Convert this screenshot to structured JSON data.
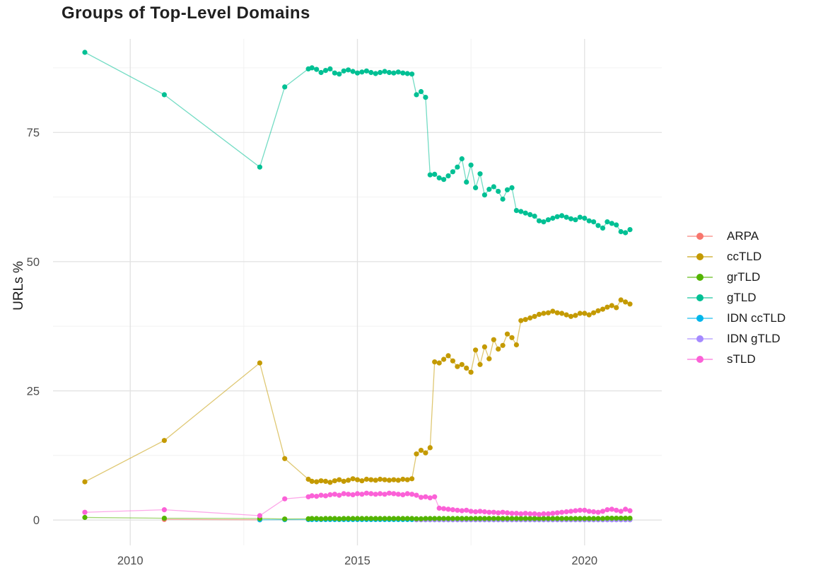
{
  "chart_data": {
    "type": "line",
    "title": "Groups of Top-Level Domains",
    "xlabel": "",
    "ylabel": "URLs %",
    "x_ticks": {
      "values": [
        2010,
        2015,
        2020
      ],
      "labels": [
        "2010",
        "2015",
        "2020"
      ]
    },
    "y_ticks": {
      "values": [
        0,
        25,
        50,
        75
      ],
      "labels": [
        "0",
        "25",
        "50",
        "75"
      ]
    },
    "x_minor": [
      2012.5,
      2017.5
    ],
    "y_minor": [
      12.5,
      37.5,
      62.5,
      87.5
    ],
    "xlim": [
      2008.3,
      2021.7
    ],
    "ylim": [
      -4.9,
      93.1
    ],
    "grid": "major+minor",
    "legend_position": "right",
    "draw_order": [
      "ARPA",
      "IDN ccTLD",
      "IDN gTLD",
      "gTLD",
      "ccTLD",
      "grTLD",
      "sTLD"
    ],
    "series": [
      {
        "name": "ARPA",
        "color": "#F8766D",
        "x": [
          2010.75,
          2012.85
        ],
        "y": [
          0.12,
          0.06
        ]
      },
      {
        "name": "ccTLD",
        "color": "#C49A00",
        "x": [
          2009,
          2010.75,
          2012.85,
          2013.4,
          2013.92,
          2014.0,
          2014.1,
          2014.2,
          2014.3,
          2014.4,
          2014.5,
          2014.6,
          2014.7,
          2014.8,
          2014.9,
          2015.0,
          2015.1,
          2015.2,
          2015.3,
          2015.4,
          2015.5,
          2015.6,
          2015.7,
          2015.8,
          2015.9,
          2016.0,
          2016.1,
          2016.2,
          2016.3,
          2016.4,
          2016.5,
          2016.6,
          2016.7,
          2016.8,
          2016.9,
          2017.0,
          2017.1,
          2017.2,
          2017.3,
          2017.4,
          2017.5,
          2017.6,
          2017.7,
          2017.8,
          2017.9,
          2018.0,
          2018.1,
          2018.2,
          2018.3,
          2018.4,
          2018.5,
          2018.6,
          2018.7,
          2018.8,
          2018.9,
          2019.0,
          2019.1,
          2019.2,
          2019.3,
          2019.4,
          2019.5,
          2019.6,
          2019.7,
          2019.8,
          2019.9,
          2020.0,
          2020.1,
          2020.2,
          2020.3,
          2020.4,
          2020.5,
          2020.6,
          2020.7,
          2020.8,
          2020.9,
          2021.0
        ],
        "y": [
          7.4,
          15.4,
          30.4,
          11.9,
          7.9,
          7.5,
          7.4,
          7.6,
          7.5,
          7.3,
          7.6,
          7.8,
          7.5,
          7.7,
          8.0,
          7.8,
          7.6,
          7.9,
          7.8,
          7.7,
          7.9,
          7.8,
          7.7,
          7.8,
          7.7,
          7.9,
          7.8,
          8.0,
          12.8,
          13.5,
          13.0,
          14.0,
          30.6,
          30.4,
          31.1,
          31.8,
          30.8,
          29.7,
          30.1,
          29.4,
          28.6,
          32.9,
          30.1,
          33.5,
          31.2,
          34.9,
          33.1,
          33.8,
          36.0,
          35.3,
          33.9,
          38.6,
          38.8,
          39.1,
          39.4,
          39.8,
          40.0,
          40.1,
          40.4,
          40.1,
          40.0,
          39.7,
          39.4,
          39.6,
          40.0,
          40.0,
          39.7,
          40.1,
          40.5,
          40.8,
          41.2,
          41.5,
          41.1,
          42.6,
          42.2,
          41.8
        ]
      },
      {
        "name": "grTLD",
        "color": "#53B400",
        "x": [
          2009,
          2010.75,
          2012.85,
          2013.4,
          2013.92,
          2014.0,
          2014.1,
          2014.2,
          2014.3,
          2014.4,
          2014.5,
          2014.6,
          2014.7,
          2014.8,
          2014.9,
          2015.0,
          2015.1,
          2015.2,
          2015.3,
          2015.4,
          2015.5,
          2015.6,
          2015.7,
          2015.8,
          2015.9,
          2016.0,
          2016.1,
          2016.2,
          2016.3,
          2016.4,
          2016.5,
          2016.6,
          2016.7,
          2016.8,
          2016.9,
          2017.0,
          2017.1,
          2017.2,
          2017.3,
          2017.4,
          2017.5,
          2017.6,
          2017.7,
          2017.8,
          2017.9,
          2018.0,
          2018.1,
          2018.2,
          2018.3,
          2018.4,
          2018.5,
          2018.6,
          2018.7,
          2018.8,
          2018.9,
          2019.0,
          2019.1,
          2019.2,
          2019.3,
          2019.4,
          2019.5,
          2019.6,
          2019.7,
          2019.8,
          2019.9,
          2020.0,
          2020.1,
          2020.2,
          2020.3,
          2020.4,
          2020.5,
          2020.6,
          2020.7,
          2020.8,
          2020.9,
          2021.0
        ],
        "y": [
          0.5,
          0.35,
          0.3,
          0.2,
          0.25,
          0.3,
          0.3,
          0.25,
          0.3,
          0.3,
          0.3,
          0.25,
          0.3,
          0.3,
          0.3,
          0.3,
          0.3,
          0.3,
          0.3,
          0.3,
          0.3,
          0.3,
          0.3,
          0.3,
          0.3,
          0.3,
          0.3,
          0.3,
          0.25,
          0.25,
          0.3,
          0.3,
          0.3,
          0.3,
          0.3,
          0.3,
          0.3,
          0.3,
          0.3,
          0.3,
          0.3,
          0.3,
          0.3,
          0.3,
          0.3,
          0.3,
          0.3,
          0.3,
          0.3,
          0.3,
          0.3,
          0.3,
          0.3,
          0.3,
          0.3,
          0.3,
          0.3,
          0.3,
          0.3,
          0.3,
          0.3,
          0.3,
          0.3,
          0.3,
          0.3,
          0.3,
          0.3,
          0.3,
          0.3,
          0.3,
          0.35,
          0.35,
          0.35,
          0.35,
          0.35,
          0.35
        ]
      },
      {
        "name": "gTLD",
        "color": "#00C094",
        "x": [
          2009,
          2010.75,
          2012.85,
          2013.4,
          2013.92,
          2014.0,
          2014.1,
          2014.2,
          2014.3,
          2014.4,
          2014.5,
          2014.6,
          2014.7,
          2014.8,
          2014.9,
          2015.0,
          2015.1,
          2015.2,
          2015.3,
          2015.4,
          2015.5,
          2015.6,
          2015.7,
          2015.8,
          2015.9,
          2016.0,
          2016.1,
          2016.2,
          2016.3,
          2016.4,
          2016.5,
          2016.6,
          2016.7,
          2016.8,
          2016.9,
          2017.0,
          2017.1,
          2017.2,
          2017.3,
          2017.4,
          2017.5,
          2017.6,
          2017.7,
          2017.8,
          2017.9,
          2018.0,
          2018.1,
          2018.2,
          2018.3,
          2018.4,
          2018.5,
          2018.6,
          2018.7,
          2018.8,
          2018.9,
          2019.0,
          2019.1,
          2019.2,
          2019.3,
          2019.4,
          2019.5,
          2019.6,
          2019.7,
          2019.8,
          2019.9,
          2020.0,
          2020.1,
          2020.2,
          2020.3,
          2020.4,
          2020.5,
          2020.6,
          2020.7,
          2020.8,
          2020.9,
          2021.0
        ],
        "y": [
          90.5,
          82.3,
          68.3,
          83.8,
          87.3,
          87.5,
          87.2,
          86.6,
          87.0,
          87.3,
          86.5,
          86.3,
          86.9,
          87.1,
          86.8,
          86.5,
          86.7,
          86.9,
          86.6,
          86.4,
          86.6,
          86.8,
          86.6,
          86.5,
          86.7,
          86.5,
          86.4,
          86.3,
          82.3,
          82.9,
          81.8,
          66.8,
          66.9,
          66.2,
          65.9,
          66.6,
          67.4,
          68.3,
          69.9,
          65.4,
          68.7,
          64.3,
          67.0,
          62.9,
          64.0,
          64.5,
          63.6,
          62.1,
          63.9,
          64.3,
          59.9,
          59.7,
          59.4,
          59.1,
          58.8,
          57.9,
          57.7,
          58.1,
          58.4,
          58.7,
          58.9,
          58.6,
          58.3,
          58.1,
          58.6,
          58.4,
          57.9,
          57.7,
          57.0,
          56.5,
          57.7,
          57.4,
          57.1,
          55.8,
          55.6,
          56.2
        ]
      },
      {
        "name": "IDN ccTLD",
        "color": "#00B6EB",
        "x": [
          2012.85,
          2013.4,
          2013.92,
          2014.0,
          2014.1,
          2014.2,
          2014.3,
          2014.4,
          2014.5,
          2014.6,
          2014.7,
          2014.8,
          2014.9,
          2015.0,
          2015.1,
          2015.2,
          2015.3,
          2015.4,
          2015.5,
          2015.6,
          2015.7,
          2015.8,
          2015.9,
          2016.0,
          2016.1,
          2016.2,
          2016.3,
          2016.4,
          2016.5,
          2016.6,
          2016.7,
          2016.8,
          2016.9,
          2017.0,
          2017.1,
          2017.2,
          2017.3,
          2017.4,
          2017.5,
          2017.6,
          2017.7,
          2017.8,
          2017.9,
          2018.0,
          2018.1,
          2018.2,
          2018.3,
          2018.4,
          2018.5,
          2018.6,
          2018.7,
          2018.8,
          2018.9,
          2019.0,
          2019.1,
          2019.2,
          2019.3,
          2019.4,
          2019.5,
          2019.6,
          2019.7,
          2019.8,
          2019.9,
          2020.0,
          2020.1,
          2020.2,
          2020.3,
          2020.4,
          2020.5,
          2020.6,
          2020.7,
          2020.8,
          2020.9,
          2021.0
        ],
        "y": [
          0.05,
          0.08,
          0.1,
          0.1,
          0.1,
          0.1,
          0.1,
          0.1,
          0.1,
          0.1,
          0.1,
          0.1,
          0.1,
          0.1,
          0.1,
          0.1,
          0.1,
          0.1,
          0.1,
          0.1,
          0.1,
          0.1,
          0.1,
          0.1,
          0.1,
          0.1,
          0.1,
          0.1,
          0.1,
          0.1,
          0.1,
          0.1,
          0.1,
          0.1,
          0.1,
          0.1,
          0.1,
          0.1,
          0.1,
          0.1,
          0.1,
          0.1,
          0.1,
          0.1,
          0.1,
          0.1,
          0.1,
          0.1,
          0.1,
          0.1,
          0.1,
          0.1,
          0.1,
          0.1,
          0.1,
          0.1,
          0.1,
          0.1,
          0.1,
          0.1,
          0.1,
          0.1,
          0.1,
          0.1,
          0.1,
          0.1,
          0.1,
          0.1,
          0.1,
          0.1,
          0.1,
          0.12,
          0.12,
          0.12
        ]
      },
      {
        "name": "IDN gTLD",
        "color": "#A58AFF",
        "x": [
          2016.3,
          2016.4,
          2016.5,
          2016.6,
          2016.7,
          2016.8,
          2016.9,
          2017.0,
          2017.1,
          2017.2,
          2017.3,
          2017.4,
          2017.5,
          2017.6,
          2017.7,
          2017.8,
          2017.9,
          2018.0,
          2018.1,
          2018.2,
          2018.3,
          2018.4,
          2018.5,
          2018.6,
          2018.7,
          2018.8,
          2018.9,
          2019.0,
          2019.1,
          2019.2,
          2019.3,
          2019.4,
          2019.5,
          2019.6,
          2019.7,
          2019.8,
          2019.9,
          2020.0,
          2020.1,
          2020.2,
          2020.3,
          2020.4,
          2020.5,
          2020.6,
          2020.7,
          2020.8,
          2020.9,
          2021.0
        ],
        "y": [
          0.05,
          0.05,
          0.05,
          0.05,
          0.05,
          0.05,
          0.05,
          0.05,
          0.05,
          0.05,
          0.05,
          0.05,
          0.05,
          0.05,
          0.05,
          0.05,
          0.05,
          0.05,
          0.05,
          0.05,
          0.05,
          0.05,
          0.05,
          0.05,
          0.05,
          0.05,
          0.05,
          0.05,
          0.05,
          0.05,
          0.05,
          0.05,
          0.05,
          0.05,
          0.05,
          0.05,
          0.05,
          0.05,
          0.05,
          0.05,
          0.05,
          0.05,
          0.05,
          0.05,
          0.05,
          0.05,
          0.05,
          0.05
        ]
      },
      {
        "name": "sTLD",
        "color": "#FB61D7",
        "x": [
          2009,
          2010.75,
          2012.85,
          2013.4,
          2013.92,
          2014.0,
          2014.1,
          2014.2,
          2014.3,
          2014.4,
          2014.5,
          2014.6,
          2014.7,
          2014.8,
          2014.9,
          2015.0,
          2015.1,
          2015.2,
          2015.3,
          2015.4,
          2015.5,
          2015.6,
          2015.7,
          2015.8,
          2015.9,
          2016.0,
          2016.1,
          2016.2,
          2016.3,
          2016.4,
          2016.5,
          2016.6,
          2016.7,
          2016.8,
          2016.9,
          2017.0,
          2017.1,
          2017.2,
          2017.3,
          2017.4,
          2017.5,
          2017.6,
          2017.7,
          2017.8,
          2017.9,
          2018.0,
          2018.1,
          2018.2,
          2018.3,
          2018.4,
          2018.5,
          2018.6,
          2018.7,
          2018.8,
          2018.9,
          2019.0,
          2019.1,
          2019.2,
          2019.3,
          2019.4,
          2019.5,
          2019.6,
          2019.7,
          2019.8,
          2019.9,
          2020.0,
          2020.1,
          2020.2,
          2020.3,
          2020.4,
          2020.5,
          2020.6,
          2020.7,
          2020.8,
          2020.9,
          2021.0
        ],
        "y": [
          1.5,
          2.0,
          0.85,
          4.1,
          4.5,
          4.7,
          4.6,
          4.8,
          4.7,
          4.9,
          5.0,
          4.8,
          5.1,
          5.0,
          4.9,
          5.1,
          5.0,
          5.2,
          5.1,
          5.0,
          5.1,
          5.0,
          5.2,
          5.1,
          5.0,
          4.9,
          5.1,
          5.0,
          4.8,
          4.4,
          4.5,
          4.3,
          4.5,
          2.3,
          2.2,
          2.1,
          2.0,
          1.9,
          1.8,
          1.9,
          1.7,
          1.6,
          1.7,
          1.6,
          1.5,
          1.5,
          1.4,
          1.5,
          1.4,
          1.3,
          1.3,
          1.2,
          1.3,
          1.2,
          1.2,
          1.1,
          1.2,
          1.2,
          1.3,
          1.4,
          1.5,
          1.6,
          1.7,
          1.8,
          1.9,
          1.9,
          1.7,
          1.6,
          1.5,
          1.7,
          2.0,
          2.1,
          1.9,
          1.7,
          2.1,
          1.8
        ]
      }
    ]
  }
}
